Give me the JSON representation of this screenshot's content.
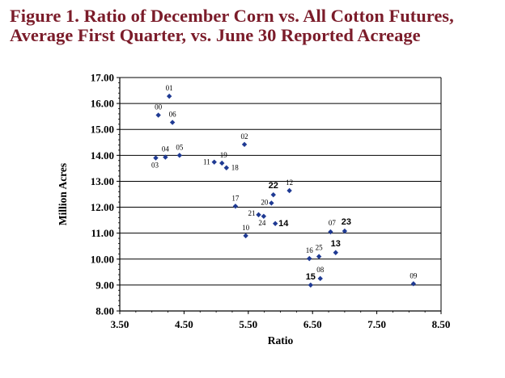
{
  "chart_data": {
    "type": "scatter",
    "title_lines": [
      "Figure 1.  Ratio of December Corn vs. All Cotton Futures,",
      "Average First Quarter, vs. June 30 Reported Acreage"
    ],
    "xlabel": "Ratio",
    "ylabel": "Million Acres",
    "xlim": [
      3.5,
      8.5
    ],
    "ylim": [
      8.0,
      17.0
    ],
    "x_ticks": [
      "3.50",
      "4.50",
      "5.50",
      "6.50",
      "7.50",
      "8.50"
    ],
    "y_ticks": [
      "8.00",
      "9.00",
      "10.00",
      "11.00",
      "12.00",
      "13.00",
      "14.00",
      "15.00",
      "16.00",
      "17.00"
    ],
    "grid": "horizontal",
    "marker_color": "#1f3a93",
    "points": [
      {
        "label": "00",
        "x": 4.1,
        "y": 15.55
      },
      {
        "label": "01",
        "x": 4.27,
        "y": 16.28
      },
      {
        "label": "02",
        "x": 5.44,
        "y": 14.42
      },
      {
        "label": "03",
        "x": 4.06,
        "y": 13.9
      },
      {
        "label": "04",
        "x": 4.21,
        "y": 13.93
      },
      {
        "label": "05",
        "x": 4.43,
        "y": 14.0
      },
      {
        "label": "06",
        "x": 4.32,
        "y": 15.27
      },
      {
        "label": "07",
        "x": 6.78,
        "y": 11.05
      },
      {
        "label": "08",
        "x": 6.62,
        "y": 9.25
      },
      {
        "label": "09",
        "x": 8.07,
        "y": 9.05
      },
      {
        "label": "10",
        "x": 5.46,
        "y": 10.9
      },
      {
        "label": "11",
        "x": 4.97,
        "y": 13.74
      },
      {
        "label": "12",
        "x": 6.14,
        "y": 12.64
      },
      {
        "label": "13",
        "x": 6.86,
        "y": 10.25
      },
      {
        "label": "14",
        "x": 5.92,
        "y": 11.37
      },
      {
        "label": "15",
        "x": 6.47,
        "y": 9.0
      },
      {
        "label": "16",
        "x": 6.45,
        "y": 10.02
      },
      {
        "label": "17",
        "x": 5.3,
        "y": 12.04
      },
      {
        "label": "18",
        "x": 5.16,
        "y": 13.52
      },
      {
        "label": "19",
        "x": 5.09,
        "y": 13.7
      },
      {
        "label": "20",
        "x": 5.86,
        "y": 12.16
      },
      {
        "label": "21",
        "x": 5.66,
        "y": 11.71
      },
      {
        "label": "22",
        "x": 5.89,
        "y": 12.48
      },
      {
        "label": "23",
        "x": 7.0,
        "y": 11.08
      },
      {
        "label": "24",
        "x": 5.74,
        "y": 11.65
      },
      {
        "label": "25",
        "x": 6.6,
        "y": 10.1
      }
    ]
  }
}
